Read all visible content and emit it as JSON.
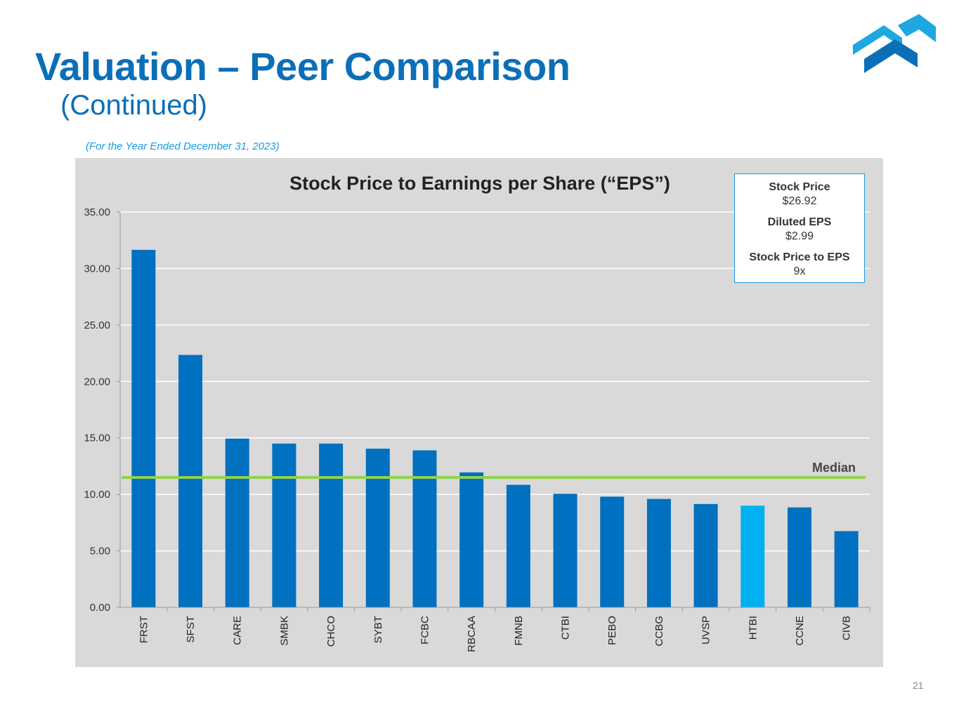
{
  "slide": {
    "title": "Valuation – Peer Comparison",
    "subtitle": "(Continued)",
    "period": "(For the Year Ended December 31, 2023)",
    "page_number": "21"
  },
  "info_box": {
    "stock_price_label": "Stock Price",
    "stock_price_value": "$26.92",
    "diluted_eps_label": "Diluted EPS",
    "diluted_eps_value": "$2.99",
    "price_to_eps_label": "Stock Price to EPS",
    "price_to_eps_value": "9x"
  },
  "colors": {
    "bar": "#0070c0",
    "highlight_bar": "#00b0f0",
    "median_line": "#92d050",
    "title": "#0b6fb8",
    "logo_light": "#1ea7e1",
    "logo_dark": "#0b6fb8"
  },
  "logo": {
    "icon": "company-logo-icon"
  },
  "chart_data": {
    "type": "bar",
    "title": "Stock Price to Earnings per Share (“EPS”)",
    "categories": [
      "FRST",
      "SFST",
      "CARE",
      "SMBK",
      "CHCO",
      "SYBT",
      "FCBC",
      "RBCAA",
      "FMNB",
      "CTBI",
      "PEBO",
      "CCBG",
      "UVSP",
      "HTBI",
      "CCNE",
      "CIVB"
    ],
    "values": [
      31.65,
      22.35,
      14.95,
      14.5,
      14.5,
      14.05,
      13.9,
      11.95,
      10.85,
      10.05,
      9.8,
      9.6,
      9.15,
      9.0,
      8.85,
      6.75
    ],
    "highlight": "HTBI",
    "median": {
      "label": "Median",
      "value": 11.5
    },
    "yticks": [
      "35.00",
      "30.00",
      "25.00",
      "20.00",
      "15.00",
      "10.00",
      "5.00",
      "0.00"
    ],
    "ylim": [
      0,
      35
    ],
    "grid": true,
    "xlabel": "",
    "ylabel": ""
  }
}
